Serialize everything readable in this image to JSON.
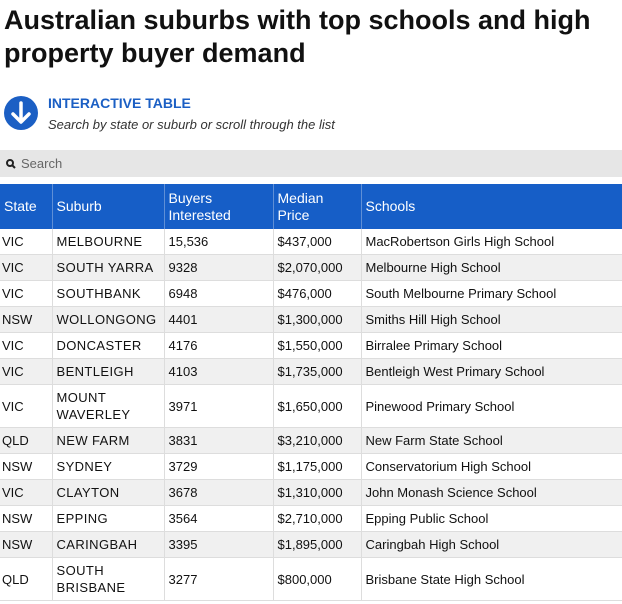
{
  "header": {
    "title": "Australian suburbs with top schools and high property buyer demand",
    "label": "INTERACTIVE TABLE",
    "subtitle": "Search by state or suburb or scroll through the list"
  },
  "search": {
    "placeholder": "Search"
  },
  "table": {
    "headers": [
      "State",
      "Suburb",
      "Buyers Interested",
      "Median Price",
      "Schools"
    ],
    "rows": [
      [
        "VIC",
        "MELBOURNE",
        "15,536",
        "$437,000",
        "MacRobertson Girls High School"
      ],
      [
        "VIC",
        "SOUTH YARRA",
        "9328",
        "$2,070,000",
        "Melbourne High School"
      ],
      [
        "VIC",
        "SOUTHBANK",
        "6948",
        "$476,000",
        "South Melbourne Primary School"
      ],
      [
        "NSW",
        "WOLLONGONG",
        "4401",
        "$1,300,000",
        "Smiths Hill High School"
      ],
      [
        "VIC",
        "DONCASTER",
        "4176",
        "$1,550,000",
        "Birralee Primary School"
      ],
      [
        "VIC",
        "BENTLEIGH",
        "4103",
        "$1,735,000",
        "Bentleigh West Primary School"
      ],
      [
        "VIC",
        "MOUNT WAVERLEY",
        "3971",
        "$1,650,000",
        "Pinewood Primary School"
      ],
      [
        "QLD",
        "NEW FARM",
        "3831",
        "$3,210,000",
        "New Farm State School"
      ],
      [
        "NSW",
        "SYDNEY",
        "3729",
        "$1,175,000",
        "Conservatorium High School"
      ],
      [
        "VIC",
        "CLAYTON",
        "3678",
        "$1,310,000",
        "John Monash Science School"
      ],
      [
        "NSW",
        "EPPING",
        "3564",
        "$2,710,000",
        "Epping Public School"
      ],
      [
        "NSW",
        "CARINGBAH",
        "3395",
        "$1,895,000",
        "Caringbah High School"
      ],
      [
        "QLD",
        "SOUTH BRISBANE",
        "3277",
        "$800,000",
        "Brisbane State High School"
      ]
    ]
  }
}
